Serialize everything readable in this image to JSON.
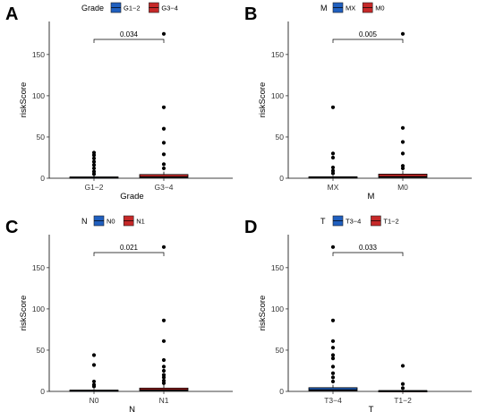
{
  "chart_data": [
    {
      "type": "box",
      "panel": "A",
      "legend_title": "Grade",
      "xlabel": "Grade",
      "ylabel": "riskScore",
      "ylim": [
        0,
        190
      ],
      "yticks": [
        0,
        50,
        100,
        150
      ],
      "pvalue": "0.034",
      "categories": [
        "G1−2",
        "G3−4"
      ],
      "series": [
        {
          "name": "G1−2",
          "color": "#1f5fbf",
          "box": [
            0.2,
            0.6,
            1.0,
            1.6,
            3.0
          ],
          "outliers": [
            5,
            8,
            12,
            16,
            20,
            24,
            28,
            31
          ]
        },
        {
          "name": "G3−4",
          "color": "#c62828",
          "box": [
            0.3,
            0.9,
            1.6,
            4.5,
            8.0
          ],
          "outliers": [
            12,
            17,
            29,
            43,
            60,
            86,
            175
          ]
        }
      ]
    },
    {
      "type": "box",
      "panel": "B",
      "legend_title": "M",
      "xlabel": "M",
      "ylabel": "riskScore",
      "ylim": [
        0,
        190
      ],
      "yticks": [
        0,
        50,
        100,
        150
      ],
      "pvalue": "0.005",
      "categories": [
        "MX",
        "M0"
      ],
      "series": [
        {
          "name": "MX",
          "color": "#1f5fbf",
          "box": [
            0.2,
            0.6,
            1.0,
            1.8,
            3.0
          ],
          "outliers": [
            6,
            9,
            13,
            25,
            30,
            86
          ]
        },
        {
          "name": "M0",
          "color": "#c62828",
          "box": [
            0.3,
            1.0,
            1.8,
            5.0,
            9.0
          ],
          "outliers": [
            12,
            15,
            30,
            44,
            61,
            175
          ]
        }
      ]
    },
    {
      "type": "box",
      "panel": "C",
      "legend_title": "N",
      "xlabel": "N",
      "ylabel": "riskScore",
      "ylim": [
        0,
        190
      ],
      "yticks": [
        0,
        50,
        100,
        150
      ],
      "pvalue": "0.021",
      "categories": [
        "N0",
        "N1"
      ],
      "series": [
        {
          "name": "N0",
          "color": "#1f5fbf",
          "box": [
            0.2,
            0.6,
            1.0,
            1.6,
            3.0
          ],
          "outliers": [
            6,
            8,
            12,
            32,
            44
          ]
        },
        {
          "name": "N1",
          "color": "#c62828",
          "box": [
            0.3,
            0.9,
            1.7,
            4.0,
            8.0
          ],
          "outliers": [
            10,
            13,
            17,
            20,
            25,
            30,
            38,
            61,
            86,
            175
          ]
        }
      ]
    },
    {
      "type": "box",
      "panel": "D",
      "legend_title": "T",
      "xlabel": "T",
      "ylabel": "riskScore",
      "ylim": [
        0,
        190
      ],
      "yticks": [
        0,
        50,
        100,
        150
      ],
      "pvalue": "0.033",
      "categories": [
        "T3−4",
        "T1−2"
      ],
      "series": [
        {
          "name": "T3−4",
          "color": "#1f5fbf",
          "box": [
            0.2,
            0.9,
            1.7,
            4.5,
            8.0
          ],
          "outliers": [
            12,
            17,
            22,
            30,
            40,
            44,
            53,
            61,
            86,
            175
          ]
        },
        {
          "name": "T1−2",
          "color": "#c62828",
          "box": [
            0.1,
            0.3,
            0.6,
            1.0,
            1.5
          ],
          "outliers": [
            4,
            9,
            31
          ]
        }
      ]
    }
  ]
}
